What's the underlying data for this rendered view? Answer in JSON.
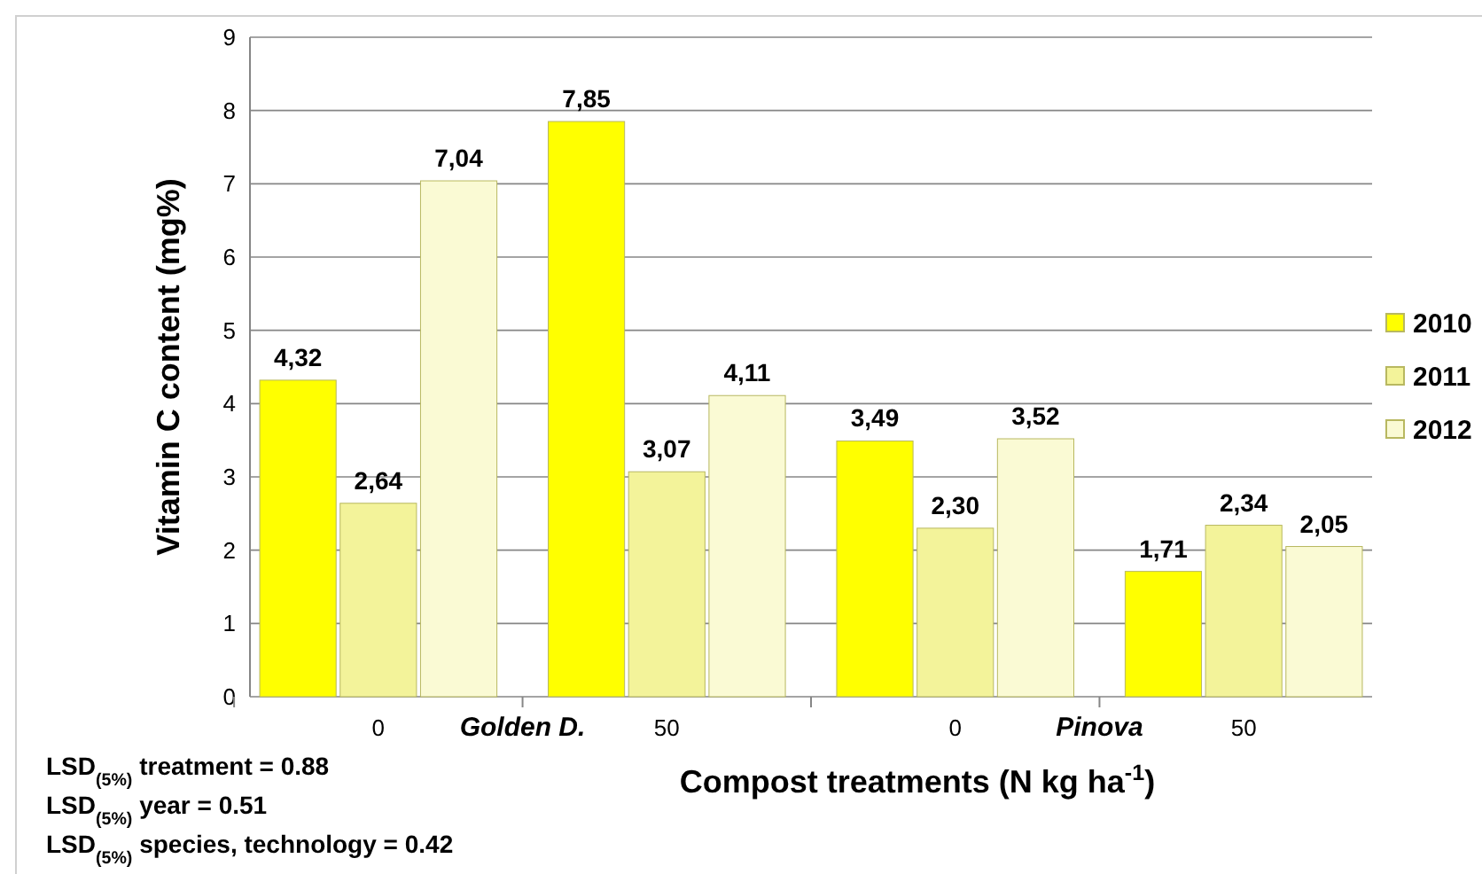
{
  "chart_data": {
    "type": "bar",
    "categories": [
      "0",
      "50",
      "0",
      "50"
    ],
    "series": [
      {
        "name": "2010",
        "color": "#ffff00",
        "values": [
          4.32,
          7.85,
          3.49,
          1.71
        ],
        "value_labels": [
          "4,32",
          "7,85",
          "3,49",
          "1,71"
        ]
      },
      {
        "name": "2011",
        "color": "#f3f39a",
        "values": [
          2.64,
          3.07,
          2.3,
          2.34
        ],
        "value_labels": [
          "2,64",
          "3,07",
          "2,30",
          "2,34"
        ]
      },
      {
        "name": "2012",
        "color": "#fafad4",
        "values": [
          7.04,
          4.11,
          3.52,
          2.05
        ],
        "value_labels": [
          "7,04",
          "4,11",
          "3,52",
          "2,05"
        ]
      }
    ],
    "ylabel": "Vitamin C content (mg%)",
    "xlabel": "Compost treatments (N kg ha$^{-1}$)",
    "ylim": [
      0,
      9
    ],
    "yticks": [
      0,
      1,
      2,
      3,
      4,
      5,
      6,
      7,
      8,
      9
    ],
    "grid": "y",
    "legend": "right",
    "annotations": [
      "Golden D.",
      "Pinova",
      "LSD$_{(5%)}$ treatment = 0.88",
      "LSD$_{(5%)}$ year =  0.51",
      "LSD$_{(5%)}$ species, technology  = 0.42"
    ]
  }
}
